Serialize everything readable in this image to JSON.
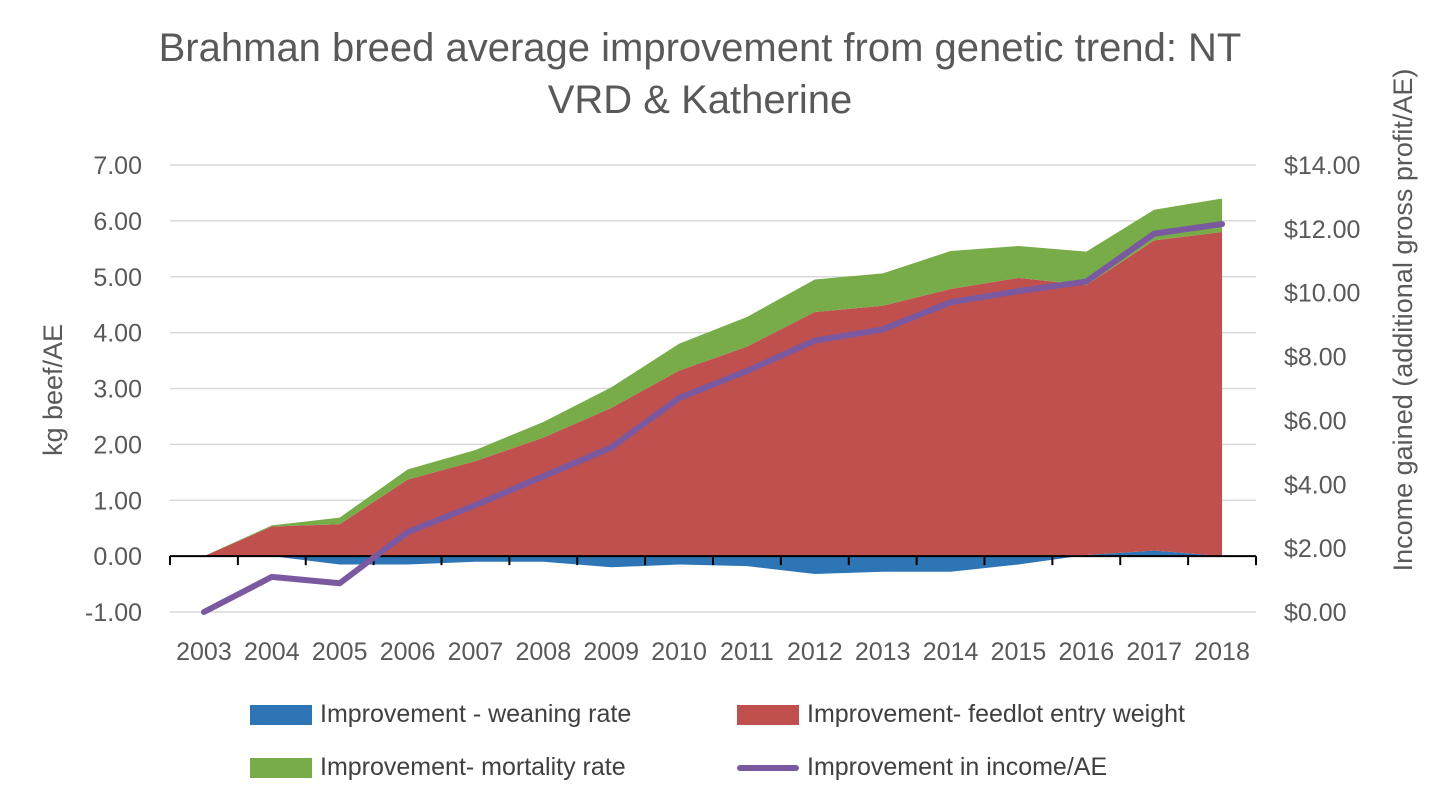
{
  "chart_data": {
    "type": "area",
    "title_lines": [
      "Brahman breed average improvement from genetic trend: NT",
      "VRD & Katherine"
    ],
    "ylabel": "kg beef/AE",
    "y2label": "Income gained (additional gross profit/AE)",
    "categories": [
      "2003",
      "2004",
      "2005",
      "2006",
      "2007",
      "2008",
      "2009",
      "2010",
      "2011",
      "2012",
      "2013",
      "2014",
      "2015",
      "2016",
      "2017",
      "2018"
    ],
    "ylim": [
      -1,
      7
    ],
    "yticks": [
      "-1.00",
      "0.00",
      "1.00",
      "2.00",
      "3.00",
      "4.00",
      "5.00",
      "6.00",
      "7.00"
    ],
    "y2lim": [
      0,
      14
    ],
    "y2ticks": [
      "$0.00",
      "$2.00",
      "$4.00",
      "$6.00",
      "$8.00",
      "$10.00",
      "$12.00",
      "$14.00"
    ],
    "series": [
      {
        "name": "Improvement - weaning rate",
        "type": "area",
        "color": "#2E75B6",
        "values": [
          0,
          0,
          -0.15,
          -0.15,
          -0.1,
          -0.1,
          -0.2,
          -0.15,
          -0.18,
          -0.32,
          -0.28,
          -0.28,
          -0.15,
          0.02,
          0.1,
          0.0
        ]
      },
      {
        "name": "Improvement- feedlot entry weight",
        "type": "area",
        "color": "#C0504D",
        "values": [
          0,
          0.53,
          0.57,
          1.37,
          1.7,
          2.12,
          2.65,
          3.32,
          3.75,
          4.37,
          4.48,
          4.78,
          4.98,
          4.83,
          5.55,
          5.8
        ]
      },
      {
        "name": "Improvement- mortality rate",
        "type": "area",
        "color": "#77AC48",
        "values": [
          0,
          0.02,
          0.12,
          0.18,
          0.2,
          0.28,
          0.37,
          0.48,
          0.53,
          0.58,
          0.58,
          0.68,
          0.57,
          0.6,
          0.55,
          0.6
        ]
      },
      {
        "name": "Improvement in income/AE",
        "type": "line",
        "axis": "secondary",
        "color": "#7B59A0",
        "values": [
          0.0,
          1.1,
          0.9,
          2.5,
          3.35,
          4.25,
          5.15,
          6.7,
          7.55,
          8.5,
          8.85,
          9.7,
          10.05,
          10.35,
          11.85,
          12.15
        ]
      }
    ]
  }
}
